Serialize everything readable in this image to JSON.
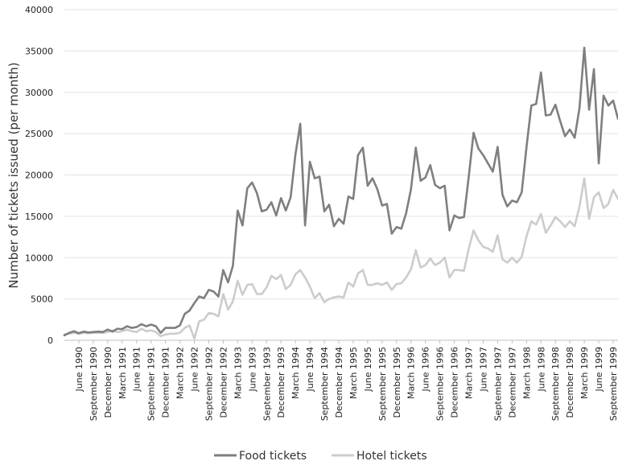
{
  "chart_data": {
    "type": "line",
    "title": "",
    "xlabel": "",
    "ylabel": "Number of tickets issued (per month)",
    "ylim": [
      0,
      40000
    ],
    "y_ticks": [
      0,
      5000,
      10000,
      15000,
      20000,
      25000,
      30000,
      35000,
      40000
    ],
    "y_tick_labels": [
      "0",
      "5000",
      "10000",
      "15000",
      "20000",
      "25000",
      "30000",
      "35000",
      "40000"
    ],
    "grid": "horizontal",
    "legend_position": "bottom",
    "x_start": "March 1990",
    "x_tick_labels": [
      "June 1990",
      "September 1990",
      "December 1990",
      "March 1991",
      "June 1991",
      "September 1991",
      "December 1991",
      "March 1992",
      "June 1992",
      "September 1992",
      "December 1992",
      "March 1993",
      "June 1993",
      "September 1993",
      "December 1993",
      "March 1994",
      "June 1994",
      "September 1994",
      "December 1994",
      "March 1995",
      "June 1995",
      "September 1995",
      "December 1995",
      "March 1996",
      "June 1996",
      "September 1996",
      "December 1996",
      "March 1997",
      "June 1997",
      "September 1997",
      "December 1997",
      "March 1998",
      "June 1998",
      "September 1998",
      "December 1998",
      "March 1999",
      "June 1999",
      "September 1999"
    ],
    "series": [
      {
        "name": "Food tickets",
        "color": "#7f7f7f",
        "values": [
          600,
          900,
          1100,
          850,
          1050,
          950,
          1000,
          1050,
          1000,
          1300,
          1050,
          1400,
          1350,
          1700,
          1500,
          1600,
          1950,
          1700,
          1900,
          1700,
          900,
          1500,
          1500,
          1500,
          1800,
          3200,
          3600,
          4500,
          5300,
          5100,
          6100,
          5900,
          5300,
          8500,
          7000,
          9000,
          15700,
          13900,
          18400,
          19100,
          17800,
          15600,
          15800,
          16700,
          15100,
          17200,
          15700,
          17300,
          22500,
          26200,
          13900,
          21600,
          19600,
          19800,
          15600,
          16400,
          13800,
          14700,
          14100,
          17400,
          17100,
          22400,
          23300,
          18700,
          19600,
          18300,
          16300,
          16500,
          12900,
          13700,
          13500,
          15400,
          18300,
          23300,
          19300,
          19700,
          21200,
          18800,
          18400,
          18700,
          13300,
          15100,
          14800,
          14900,
          19800,
          25100,
          23200,
          22400,
          21400,
          20400,
          23400,
          17600,
          16200,
          16900,
          16700,
          17900,
          23400,
          28400,
          28600,
          32400,
          27200,
          27300,
          28500,
          26500,
          24700,
          25500,
          24500,
          28100,
          35400,
          27900,
          32800,
          21400,
          29600,
          28400,
          29000,
          26800
        ]
      },
      {
        "name": "Hotel tickets",
        "color": "#cccccc",
        "values": [
          700,
          800,
          900,
          800,
          900,
          850,
          900,
          900,
          900,
          1000,
          1200,
          1000,
          1100,
          1300,
          1100,
          1000,
          1400,
          1100,
          1200,
          1000,
          500,
          700,
          800,
          800,
          900,
          1500,
          1800,
          200,
          2300,
          2500,
          3300,
          3200,
          2900,
          5600,
          3700,
          4700,
          7200,
          5500,
          6700,
          6800,
          5600,
          5600,
          6400,
          7800,
          7400,
          7900,
          6200,
          6700,
          8000,
          8500,
          7600,
          6500,
          5100,
          5700,
          4600,
          5000,
          5200,
          5300,
          5200,
          7000,
          6500,
          8100,
          8500,
          6700,
          6700,
          6900,
          6700,
          7000,
          6100,
          6800,
          6900,
          7600,
          8600,
          10900,
          8800,
          9100,
          9900,
          9100,
          9400,
          10000,
          7600,
          8500,
          8500,
          8400,
          11100,
          13300,
          12100,
          11300,
          11100,
          10700,
          12700,
          9800,
          9400,
          10000,
          9400,
          10100,
          12600,
          14400,
          14000,
          15300,
          13000,
          13900,
          14900,
          14400,
          13700,
          14400,
          13800,
          16200,
          19600,
          14700,
          17300,
          17900,
          16000,
          16500,
          18200,
          17100
        ]
      }
    ]
  }
}
